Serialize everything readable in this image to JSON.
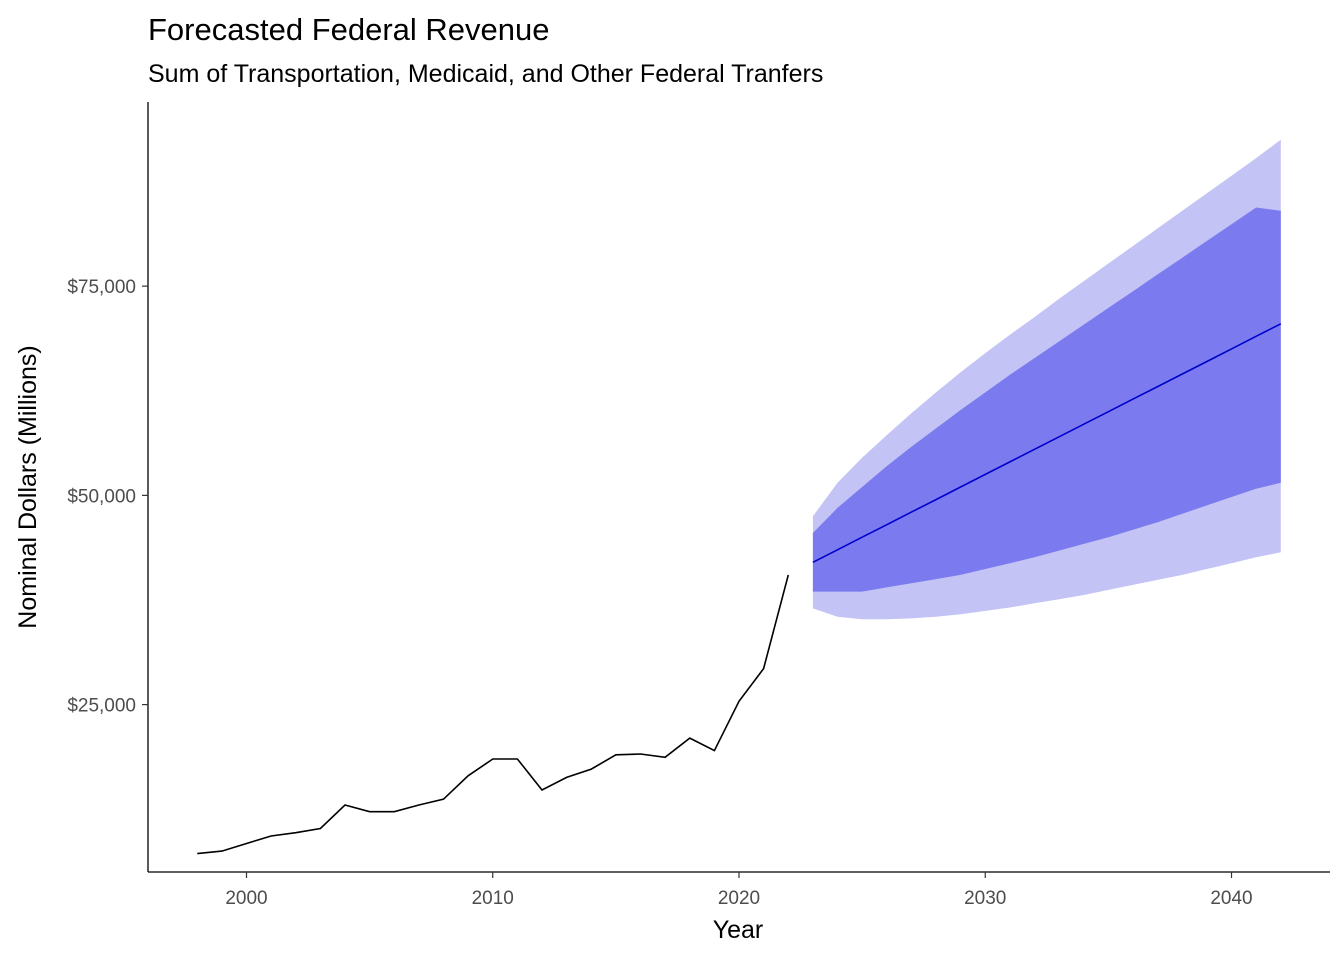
{
  "chart_data": {
    "type": "line",
    "title": "Forecasted Federal Revenue",
    "subtitle": "Sum of Transportation, Medicaid, and Other Federal Tranfers",
    "xlabel": "Year",
    "ylabel": "Nominal Dollars (Millions)",
    "xlim": [
      1996,
      2044
    ],
    "ylim": [
      5000,
      97000
    ],
    "x_ticks": [
      2000,
      2010,
      2020,
      2030,
      2040
    ],
    "y_ticks": [
      25000,
      50000,
      75000
    ],
    "y_tick_labels": [
      "$25,000",
      "$50,000",
      "$75,000"
    ],
    "grid": false,
    "legend": "none",
    "colors": {
      "history": "#000000",
      "forecast": "#0000cc",
      "band80": "#7b7bef",
      "band95": "#c3c3f5",
      "axis": "#000000",
      "tick_label": "#4d4d4d"
    },
    "history": {
      "x": [
        1998,
        1999,
        2000,
        2001,
        2002,
        2003,
        2004,
        2005,
        2006,
        2007,
        2008,
        2009,
        2010,
        2011,
        2012,
        2013,
        2014,
        2015,
        2016,
        2017,
        2018,
        2019,
        2020,
        2021,
        2022
      ],
      "y": [
        7200,
        7500,
        8400,
        9300,
        9700,
        10200,
        13000,
        12200,
        12200,
        13000,
        13700,
        16500,
        18500,
        18500,
        14800,
        16300,
        17300,
        19000,
        19100,
        18700,
        21000,
        19500,
        25400,
        29300,
        40500
      ]
    },
    "forecast": {
      "x": [
        2023,
        2024,
        2025,
        2026,
        2027,
        2028,
        2029,
        2030,
        2031,
        2032,
        2033,
        2034,
        2035,
        2036,
        2037,
        2038,
        2039,
        2040,
        2041,
        2042
      ],
      "mean": [
        42000,
        43500,
        45000,
        46500,
        48000,
        49500,
        51000,
        52500,
        54000,
        55500,
        57000,
        58500,
        60000,
        61500,
        63000,
        64500,
        66000,
        67500,
        69000,
        70500
      ],
      "lo80": [
        38500,
        38500,
        38500,
        39000,
        39500,
        40000,
        40500,
        41200,
        41900,
        42600,
        43400,
        44200,
        45000,
        45900,
        46800,
        47800,
        48800,
        49800,
        50800,
        51500
      ],
      "hi80": [
        45500,
        48500,
        51000,
        53500,
        55800,
        58000,
        60200,
        62300,
        64400,
        66400,
        68400,
        70400,
        72400,
        74400,
        76400,
        78400,
        80400,
        82400,
        84400,
        84000
      ],
      "lo95": [
        36500,
        35500,
        35200,
        35200,
        35300,
        35500,
        35800,
        36200,
        36600,
        37100,
        37600,
        38100,
        38700,
        39300,
        39900,
        40500,
        41200,
        41900,
        42600,
        43200
      ],
      "hi95": [
        47500,
        51500,
        54500,
        57200,
        59800,
        62300,
        64700,
        67000,
        69200,
        71300,
        73500,
        75600,
        77700,
        79800,
        81900,
        84000,
        86100,
        88200,
        90300,
        92500
      ]
    }
  }
}
